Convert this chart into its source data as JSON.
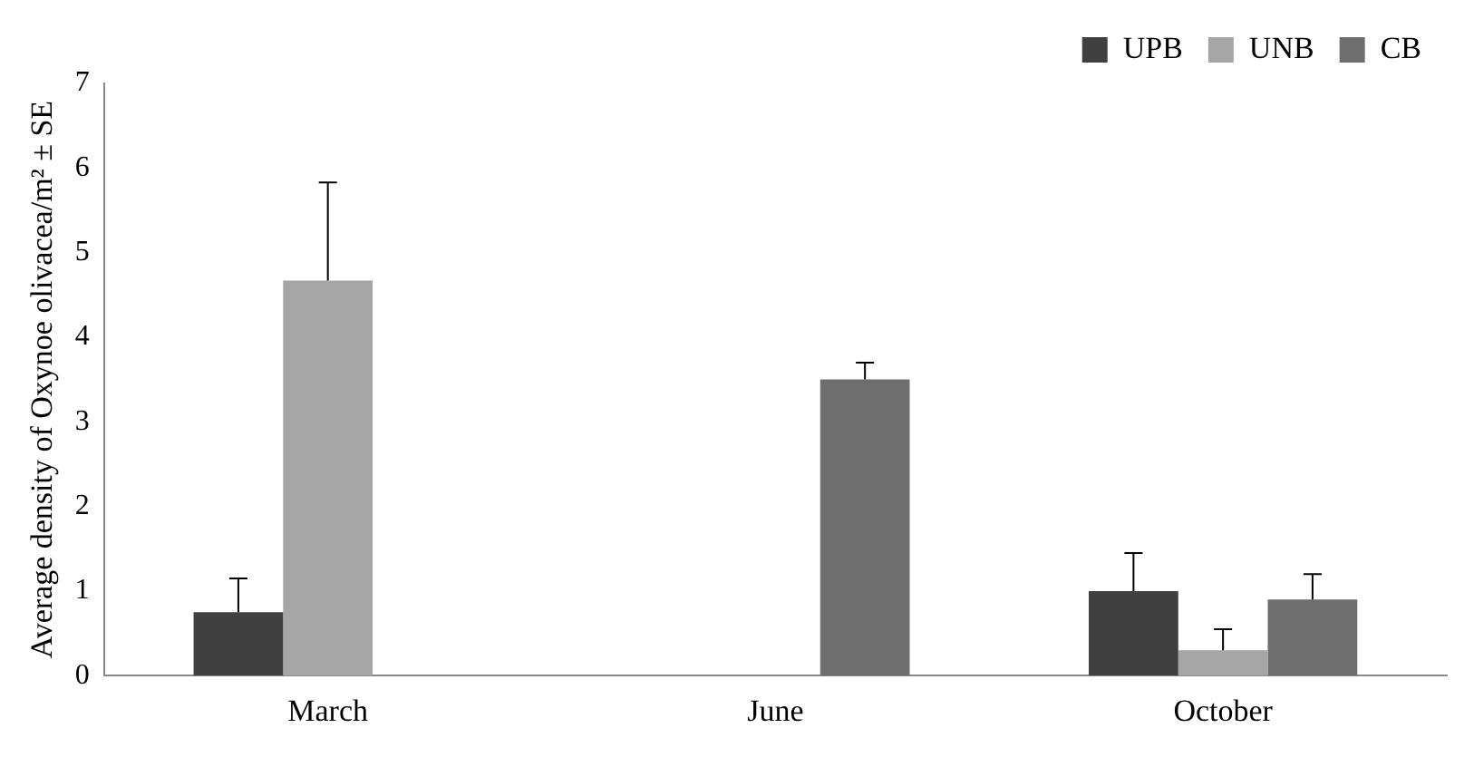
{
  "chart_data": {
    "type": "bar",
    "ylabel": "Average density of Oxynoe olivacea/m² ± SE",
    "categories": [
      "March",
      "June",
      "October"
    ],
    "series": [
      {
        "name": "UPB",
        "color": "#404040",
        "values": [
          0.75,
          0,
          1.0
        ],
        "errors": [
          [
            0.75,
            1.15
          ],
          null,
          [
            1.0,
            1.45
          ]
        ]
      },
      {
        "name": "UNB",
        "color": "#a6a6a6",
        "values": [
          4.67,
          0,
          0.3
        ],
        "errors": [
          [
            4.67,
            5.83
          ],
          null,
          [
            0.3,
            0.55
          ]
        ]
      },
      {
        "name": "CB",
        "color": "#6e6e6e",
        "values": [
          0,
          3.5,
          0.9
        ],
        "errors": [
          null,
          [
            3.5,
            3.7
          ],
          [
            0.9,
            1.2
          ]
        ]
      }
    ],
    "ylim": [
      0,
      7
    ],
    "yticks": [
      0,
      1,
      2,
      3,
      4,
      5,
      6,
      7
    ],
    "grid": false,
    "legend": "top right"
  }
}
